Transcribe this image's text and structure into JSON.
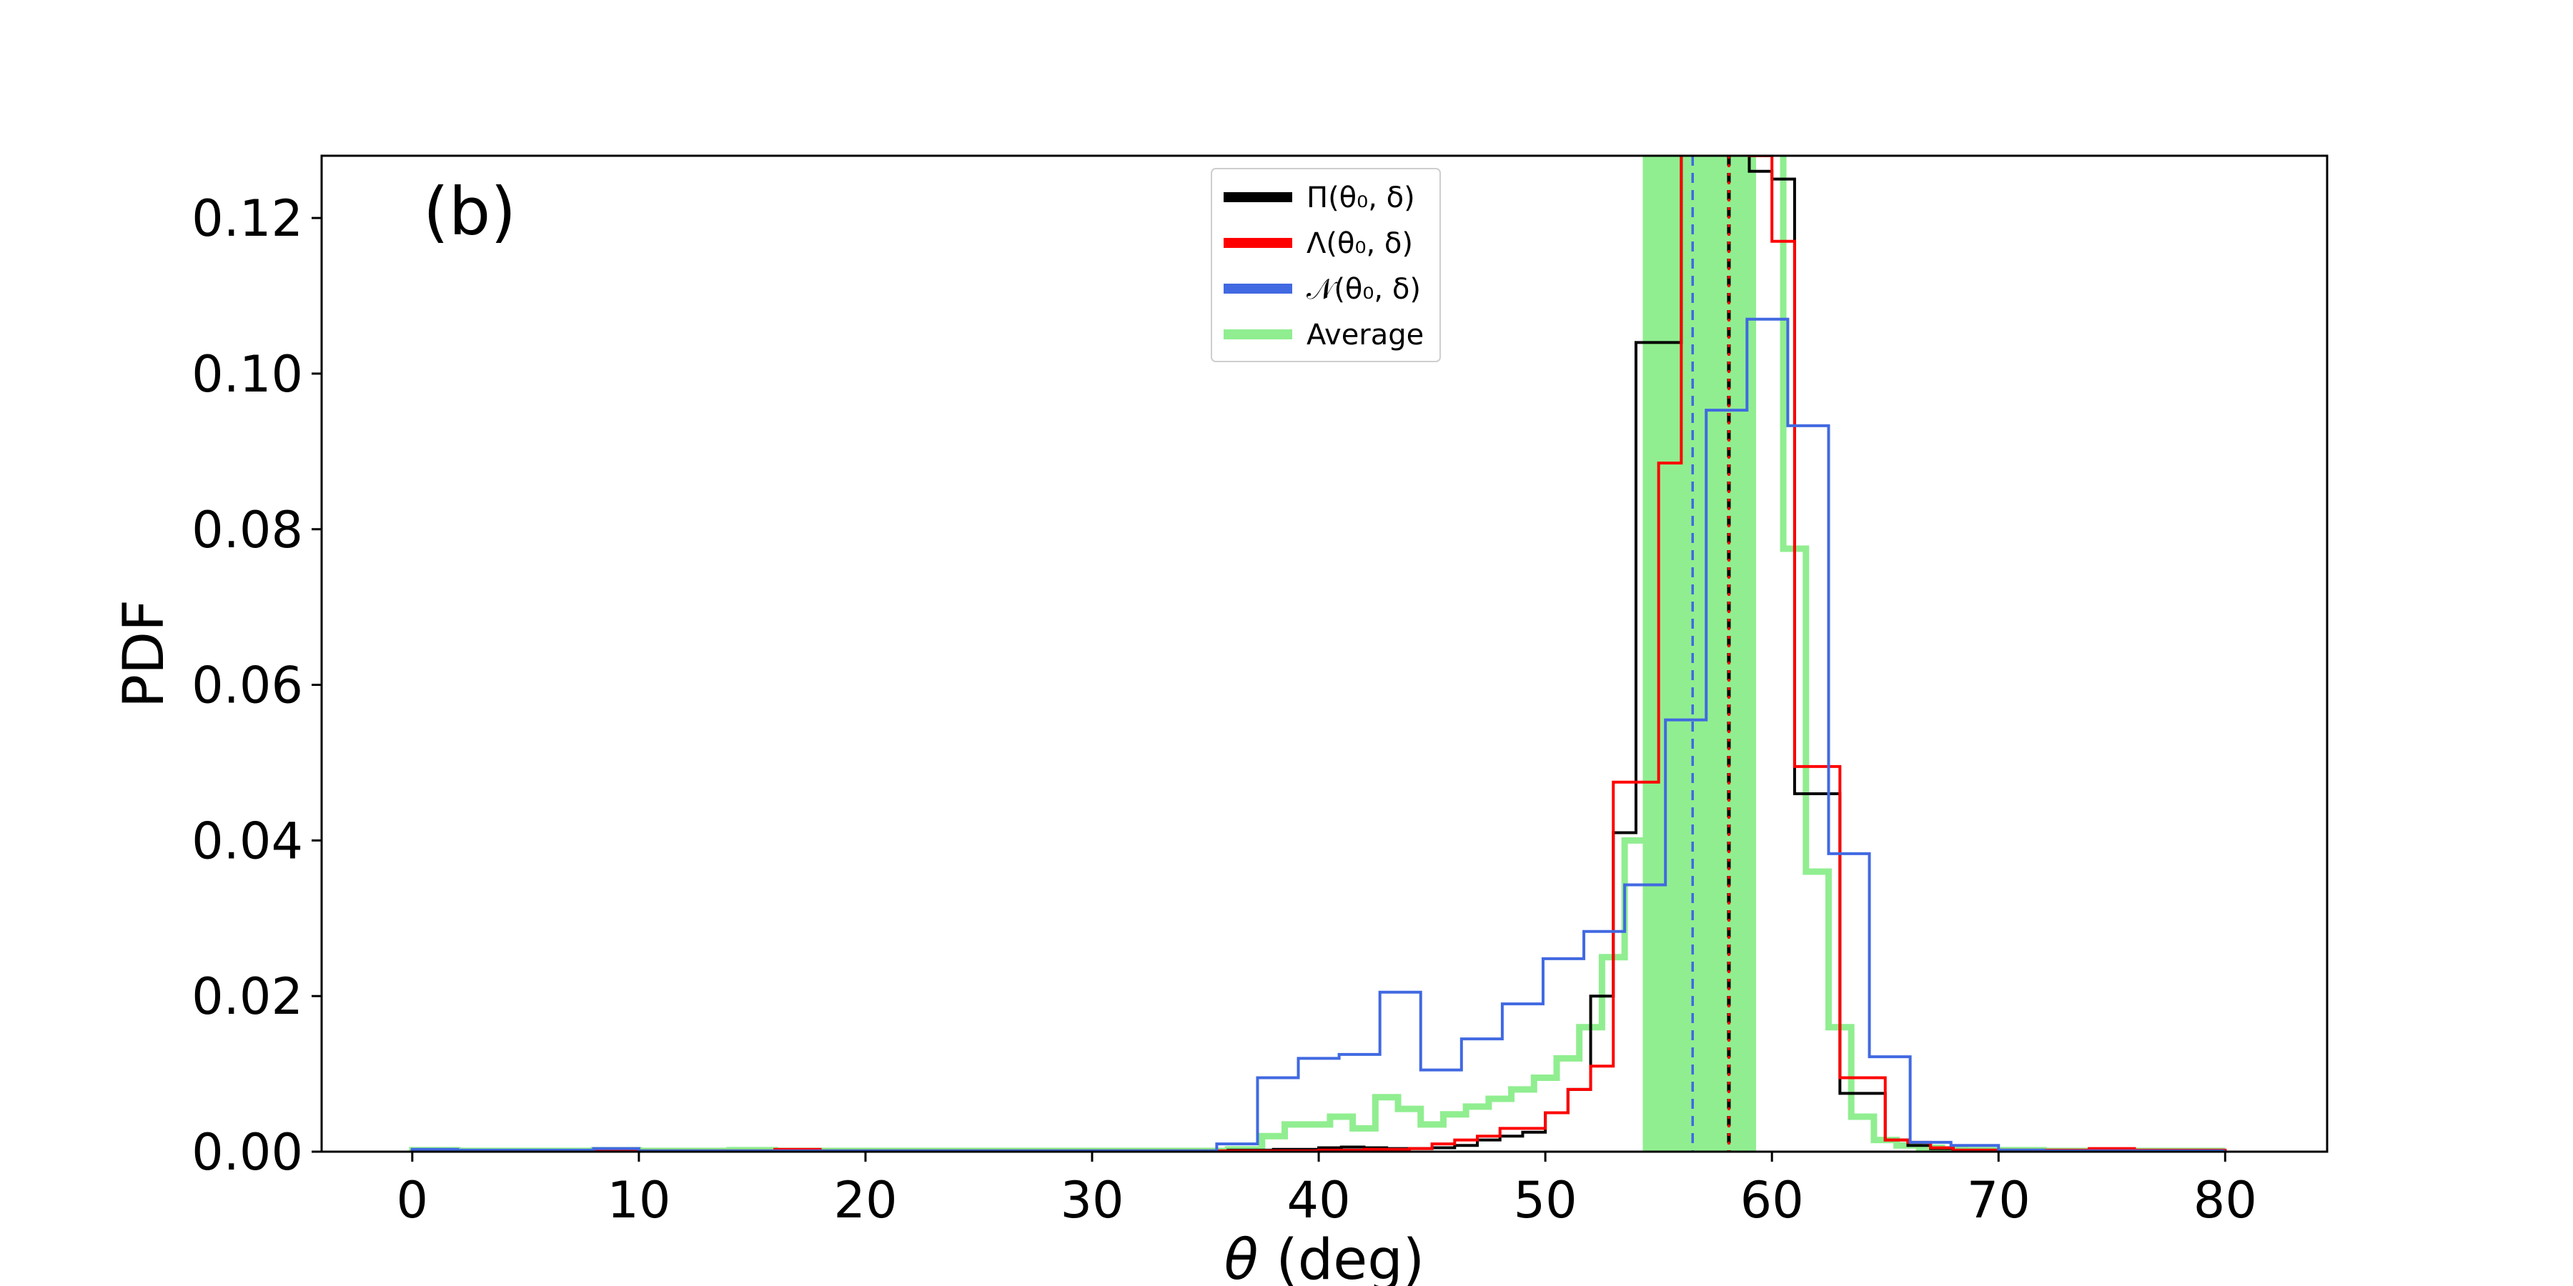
{
  "chart_data": {
    "type": "histogram-step",
    "panel_label": "(b)",
    "xlabel": "θ (deg)",
    "ylabel": "PDF",
    "xlim": [
      -4,
      84.5
    ],
    "ylim": [
      0,
      0.128
    ],
    "xticks": [
      0,
      10,
      20,
      30,
      40,
      50,
      60,
      70,
      80
    ],
    "yticks": [
      0.0,
      0.02,
      0.04,
      0.06,
      0.08,
      0.1,
      0.12
    ],
    "ytick_labels": [
      "0.00",
      "0.02",
      "0.04",
      "0.06",
      "0.08",
      "0.10",
      "0.12"
    ],
    "legend_placement": "upper-center",
    "series": [
      {
        "name": "Π(θ₀, δ)",
        "color": "#000000",
        "style": "step",
        "bins": [
          0,
          2,
          4,
          6,
          8,
          10,
          12,
          14,
          16,
          18,
          20,
          22,
          24,
          26,
          28,
          30,
          32,
          34,
          36,
          38,
          40,
          41,
          42,
          43,
          44,
          45,
          46,
          47,
          48,
          49,
          50,
          51,
          52,
          53,
          54,
          55,
          56,
          57,
          58,
          59,
          60,
          61,
          62,
          63,
          64,
          65,
          66,
          67,
          68,
          70,
          72,
          74,
          76,
          78,
          80
        ],
        "values": [
          0.0002,
          0.0001,
          0.0001,
          0.0001,
          0.0001,
          0.0001,
          0.0001,
          0.0001,
          0.0001,
          0.0001,
          0.0001,
          0.0001,
          0.0001,
          0.0001,
          0.0001,
          0.0001,
          0.0001,
          0.0001,
          0.0002,
          0.0003,
          0.0005,
          0.0006,
          0.0005,
          0.0004,
          0.0004,
          0.0005,
          0.0008,
          0.0015,
          0.002,
          0.0025,
          0.005,
          0.008,
          0.02,
          0.041,
          0.104,
          0.104,
          0.135,
          0.129,
          0.129,
          0.126,
          0.125,
          0.046,
          0.046,
          0.0075,
          0.0075,
          0.0015,
          0.0008,
          0.0004,
          0.0002,
          0.0002,
          0.0001,
          0.0001,
          0.0001,
          0.0001
        ]
      },
      {
        "name": "Λ(θ₀, δ)",
        "color": "#ff0000",
        "style": "step",
        "bins": [
          0,
          2,
          4,
          6,
          8,
          10,
          12,
          14,
          16,
          18,
          20,
          22,
          24,
          26,
          28,
          30,
          32,
          34,
          36,
          38,
          40,
          42,
          44,
          45,
          46,
          47,
          48,
          49,
          50,
          51,
          52,
          53,
          54,
          55,
          56,
          57,
          58,
          59,
          60,
          61,
          62,
          63,
          64,
          65,
          66,
          67,
          68,
          70,
          72,
          74,
          76,
          78,
          80
        ],
        "values": [
          0.0001,
          0.0001,
          0.0001,
          0.0001,
          0.0002,
          0.0001,
          0.0001,
          0.0001,
          0.0003,
          0.0001,
          0.0001,
          0.0001,
          0.0001,
          0.0001,
          0.0001,
          0.0001,
          0.0001,
          0.0001,
          0.0001,
          0.0001,
          0.0002,
          0.0003,
          0.0004,
          0.001,
          0.0015,
          0.002,
          0.003,
          0.003,
          0.005,
          0.008,
          0.011,
          0.0475,
          0.0475,
          0.0885,
          0.135,
          0.135,
          0.135,
          0.128,
          0.117,
          0.0495,
          0.0495,
          0.0095,
          0.0095,
          0.0015,
          0.0012,
          0.0005,
          0.0002,
          0.0002,
          0.0002,
          0.0004,
          0.0002,
          0.0002,
          0.0001
        ]
      },
      {
        "name": "𝒩(θ₀, δ)",
        "color": "#4169e1",
        "style": "step",
        "bins": [
          0,
          2,
          4,
          6,
          8,
          10,
          12,
          14,
          16,
          18,
          20,
          22,
          24,
          26,
          28,
          30,
          32,
          34,
          35.5,
          37.3,
          39.1,
          40.9,
          42.7,
          44.5,
          46.3,
          48.1,
          49.9,
          51.7,
          53.5,
          55.3,
          57.1,
          58.9,
          60.7,
          62.5,
          64.3,
          66.1,
          67.9,
          70,
          72,
          74,
          76,
          78,
          80
        ],
        "values": [
          0.0003,
          0.0002,
          0.0002,
          0.0002,
          0.0004,
          0.0001,
          0.0001,
          0.0001,
          0.0001,
          0.0001,
          0.0001,
          0.0001,
          0.0001,
          0.0001,
          0.0001,
          0.0001,
          0.0001,
          0.0001,
          0.001,
          0.0095,
          0.012,
          0.0125,
          0.0205,
          0.0105,
          0.0145,
          0.019,
          0.0248,
          0.0283,
          0.0343,
          0.0555,
          0.0953,
          0.107,
          0.0933,
          0.0383,
          0.0122,
          0.0012,
          0.0008,
          0.0002,
          0.0001,
          0.0001,
          0.0001,
          0.0001,
          0.0001
        ]
      },
      {
        "name": "Average",
        "color": "#90ee90",
        "style": "step",
        "bins": [
          0,
          2,
          4,
          6,
          8,
          10,
          12,
          14,
          16,
          18,
          20,
          22,
          24,
          26,
          28,
          30,
          32,
          34,
          36,
          37.5,
          38.5,
          39.5,
          40.5,
          41.5,
          42.5,
          43.5,
          44.5,
          45.5,
          46.5,
          47.5,
          48.5,
          49.5,
          50.5,
          51.5,
          52.5,
          53.5,
          54.5,
          55.5,
          56.5,
          57.5,
          58.5,
          59.5,
          60.5,
          61.5,
          62.5,
          63.5,
          64.5,
          65.5,
          66.5,
          67.5,
          68.5,
          70,
          72,
          74,
          76,
          78,
          80
        ],
        "values": [
          0.0002,
          0.0001,
          0.0001,
          0.0001,
          0.0002,
          0.0001,
          0.0001,
          0.0002,
          0.0001,
          0.0001,
          0.0001,
          0.0001,
          0.0001,
          0.0001,
          0.0001,
          0.0001,
          0.0001,
          0.0001,
          0.0003,
          0.002,
          0.0035,
          0.0035,
          0.0045,
          0.003,
          0.007,
          0.0055,
          0.0035,
          0.0048,
          0.0058,
          0.0068,
          0.008,
          0.0095,
          0.012,
          0.016,
          0.025,
          0.04,
          0.0615,
          0.0945,
          0.135,
          0.135,
          0.135,
          0.135,
          0.0775,
          0.036,
          0.016,
          0.0045,
          0.0015,
          0.0008,
          0.0005,
          0.0003,
          0.0002,
          0.0002,
          0.0001,
          0.0001,
          0.0001,
          0.0001,
          0.0001
        ]
      }
    ],
    "shaded_band": {
      "x0": 54.3,
      "x1": 59.3,
      "color": "#90ee90"
    },
    "vertical_lines": [
      {
        "x": 58.1,
        "color": "#000000",
        "style": "dashed"
      },
      {
        "x": 58.1,
        "color": "#ff0000",
        "style": "dotted"
      },
      {
        "x": 56.5,
        "color": "#4169e1",
        "style": "dashed"
      }
    ]
  }
}
